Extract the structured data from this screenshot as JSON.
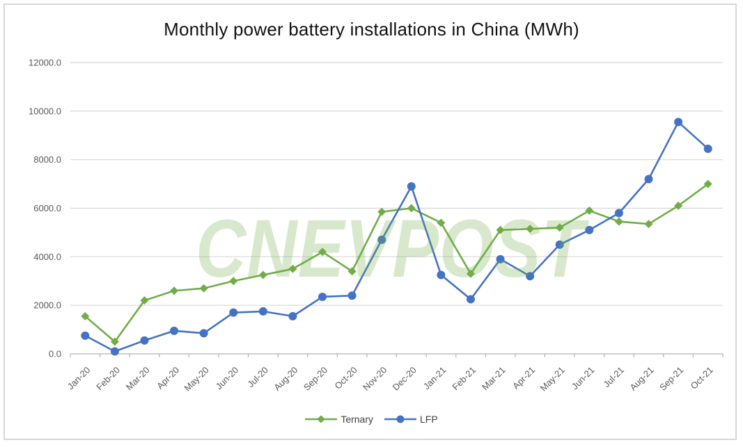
{
  "chart_data": {
    "type": "line",
    "title": "Monthly power battery installations in China (MWh)",
    "xlabel": "",
    "ylabel": "",
    "categories": [
      "Jan-20",
      "Feb-20",
      "Mar-20",
      "Apr-20",
      "May-20",
      "Jun-20",
      "Jul-20",
      "Aug-20",
      "Sep-20",
      "Oct-20",
      "Nov-20",
      "Dec-20",
      "Jan-21",
      "Feb-21",
      "Mar-21",
      "Apr-21",
      "May-21",
      "Jun-21",
      "Jul-21",
      "Aug-21",
      "Sep-21",
      "Oct-21"
    ],
    "series": [
      {
        "name": "Ternary",
        "color": "#70AD47",
        "marker": "diamond",
        "values": [
          1550,
          500,
          2200,
          2600,
          2700,
          3000,
          3250,
          3500,
          4200,
          3400,
          5850,
          6000,
          5400,
          3300,
          5100,
          5150,
          5200,
          5900,
          5450,
          5350,
          6100,
          7000
        ]
      },
      {
        "name": "LFP",
        "color": "#4472C4",
        "marker": "circle",
        "values": [
          750,
          100,
          550,
          950,
          850,
          1700,
          1750,
          1550,
          2350,
          2400,
          4700,
          6900,
          3250,
          2250,
          3900,
          3200,
          4500,
          5100,
          5800,
          7200,
          9550,
          8450
        ]
      }
    ],
    "ylim": [
      0,
      12000
    ],
    "ytick_step": 2000,
    "ytick_labels": [
      "0.0",
      "2000.0",
      "4000.0",
      "6000.0",
      "8000.0",
      "10000.0",
      "12000.0"
    ],
    "grid": true,
    "legend_position": "bottom"
  },
  "watermark": {
    "text": "CNEVPOST",
    "color": "#70AD47"
  }
}
